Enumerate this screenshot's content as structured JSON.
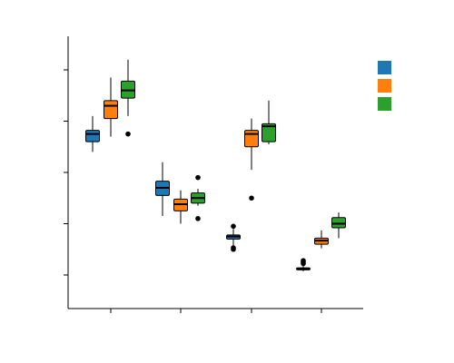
{
  "chart_data": {
    "type": "boxplot",
    "title": "",
    "xlabel": "",
    "ylabel": "",
    "grid": false,
    "legend_position": "top-right",
    "ylim": [
      -0.3,
      5.0
    ],
    "yticks": [
      0,
      1,
      2,
      3,
      4
    ],
    "categories": [
      "",
      "",
      "",
      ""
    ],
    "series": [
      {
        "color": "#1f77b4",
        "boxes": [
          {
            "whislo": 2.4,
            "q1": 2.6,
            "med": 2.75,
            "q3": 2.82,
            "whishi": 3.1,
            "fliers": []
          },
          {
            "whislo": 1.15,
            "q1": 1.55,
            "med": 1.7,
            "q3": 1.83,
            "whishi": 2.2,
            "fliers": []
          },
          {
            "whislo": 0.55,
            "q1": 0.7,
            "med": 0.75,
            "q3": 0.78,
            "whishi": 0.9,
            "fliers": [
              0.5,
              0.53,
              0.95
            ]
          },
          {
            "whislo": 0.07,
            "q1": 0.1,
            "med": 0.12,
            "q3": 0.14,
            "whishi": 0.17,
            "fliers": [
              0.22,
              0.25,
              0.28
            ]
          }
        ]
      },
      {
        "color": "#ff7f0e",
        "boxes": [
          {
            "whislo": 2.7,
            "q1": 3.05,
            "med": 3.3,
            "q3": 3.4,
            "whishi": 3.85,
            "fliers": []
          },
          {
            "whislo": 1.0,
            "q1": 1.25,
            "med": 1.38,
            "q3": 1.48,
            "whishi": 1.65,
            "fliers": []
          },
          {
            "whislo": 2.05,
            "q1": 2.5,
            "med": 2.75,
            "q3": 2.82,
            "whishi": 3.05,
            "fliers": [
              1.5
            ]
          },
          {
            "whislo": 0.52,
            "q1": 0.6,
            "med": 0.67,
            "q3": 0.72,
            "whishi": 0.87,
            "fliers": []
          }
        ]
      },
      {
        "color": "#2ca02c",
        "boxes": [
          {
            "whislo": 3.1,
            "q1": 3.45,
            "med": 3.6,
            "q3": 3.78,
            "whishi": 4.2,
            "fliers": [
              2.75
            ]
          },
          {
            "whislo": 1.35,
            "q1": 1.4,
            "med": 1.5,
            "q3": 1.6,
            "whishi": 1.68,
            "fliers": [
              1.1,
              1.9
            ]
          },
          {
            "whislo": 2.55,
            "q1": 2.6,
            "med": 2.9,
            "q3": 2.95,
            "whishi": 3.4,
            "fliers": []
          },
          {
            "whislo": 0.72,
            "q1": 0.92,
            "med": 1.0,
            "q3": 1.12,
            "whishi": 1.22,
            "fliers": []
          }
        ]
      }
    ]
  }
}
